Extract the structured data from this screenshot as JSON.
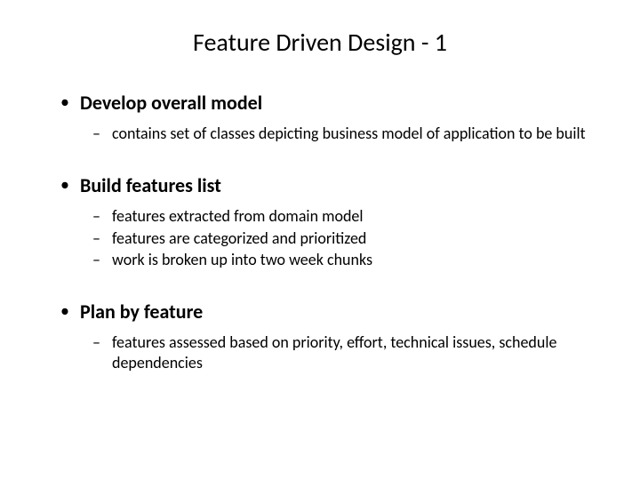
{
  "slide": {
    "title": "Feature Driven Design - 1",
    "background_color": "#ffffff",
    "text_color": "#000000",
    "title_fontsize": 28,
    "l1_fontsize": 22,
    "l2_fontsize": 18,
    "bullets": [
      {
        "text": "Develop overall model",
        "sub": [
          "contains set of classes depicting business model of application to be built"
        ]
      },
      {
        "text": "Build features list",
        "sub": [
          "features extracted from domain model",
          "features are categorized and prioritized",
          "work is broken up into two week chunks"
        ]
      },
      {
        "text": "Plan by feature",
        "sub": [
          "features assessed based on priority, effort, technical issues, schedule dependencies"
        ]
      }
    ]
  }
}
